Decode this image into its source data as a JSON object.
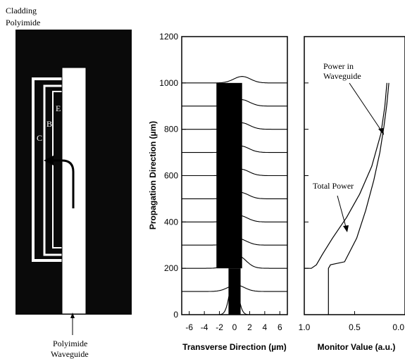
{
  "schematic": {
    "top_label_1": "Cladding",
    "top_label_2": "Polyimide",
    "bottom_label_1": "Polyimide",
    "bottom_label_2": "Waveguide",
    "letter_B": "B",
    "letter_C": "C",
    "letter_E": "E"
  },
  "chart_data": [
    {
      "type": "line",
      "title": "",
      "ylabel": "Propagation Direction (µm)",
      "xlabel": "Transverse Direction (µm)",
      "xlim": [
        -7,
        7
      ],
      "ylim": [
        0,
        1200
      ],
      "x_ticks": [
        -6,
        -4,
        -2,
        0,
        2,
        4,
        6
      ],
      "y_ticks": [
        0,
        200,
        400,
        600,
        800,
        1000,
        1200
      ],
      "profile_baselines": [
        0,
        100,
        200,
        300,
        400,
        500,
        600,
        700,
        800,
        900,
        1000
      ],
      "profile_peak_positions": [
        -0.1,
        0.2,
        0.4,
        0.5,
        0.6,
        0.7,
        0.8,
        0.8,
        0.9,
        0.9,
        1.0
      ],
      "dark_regions": [
        {
          "x": [
            -0.8,
            0.8
          ],
          "y": [
            0,
            200
          ]
        },
        {
          "x": [
            -2.4,
            1.0
          ],
          "y": [
            200,
            1000
          ]
        }
      ]
    },
    {
      "type": "line",
      "title": "",
      "xlabel": "Monitor Value (a.u.)",
      "xlim": [
        1.0,
        0.0
      ],
      "ylim": [
        0,
        1200
      ],
      "x_ticks": [
        1.0,
        0.5,
        0.0
      ],
      "x_tick_labels": [
        "1.0",
        "0.5",
        "0.0"
      ],
      "series": [
        {
          "name": "Total Power",
          "x": [
            1.0,
            0.93,
            0.88,
            0.82,
            0.72,
            0.58,
            0.45,
            0.33,
            0.24,
            0.2,
            0.18
          ],
          "y": [
            200,
            200,
            215,
            260,
            330,
            420,
            520,
            640,
            780,
            900,
            1000
          ]
        },
        {
          "name": "Power in Waveguide",
          "x": [
            0.76,
            0.76,
            0.74,
            0.6,
            0.48,
            0.39,
            0.31,
            0.25,
            0.21,
            0.18,
            0.16
          ],
          "y": [
            0,
            200,
            215,
            228,
            330,
            450,
            580,
            700,
            810,
            910,
            1000
          ]
        }
      ],
      "annotations": [
        {
          "text_1": "Power in",
          "text_2": "Waveguide"
        },
        {
          "text": "Total Power"
        }
      ]
    }
  ]
}
